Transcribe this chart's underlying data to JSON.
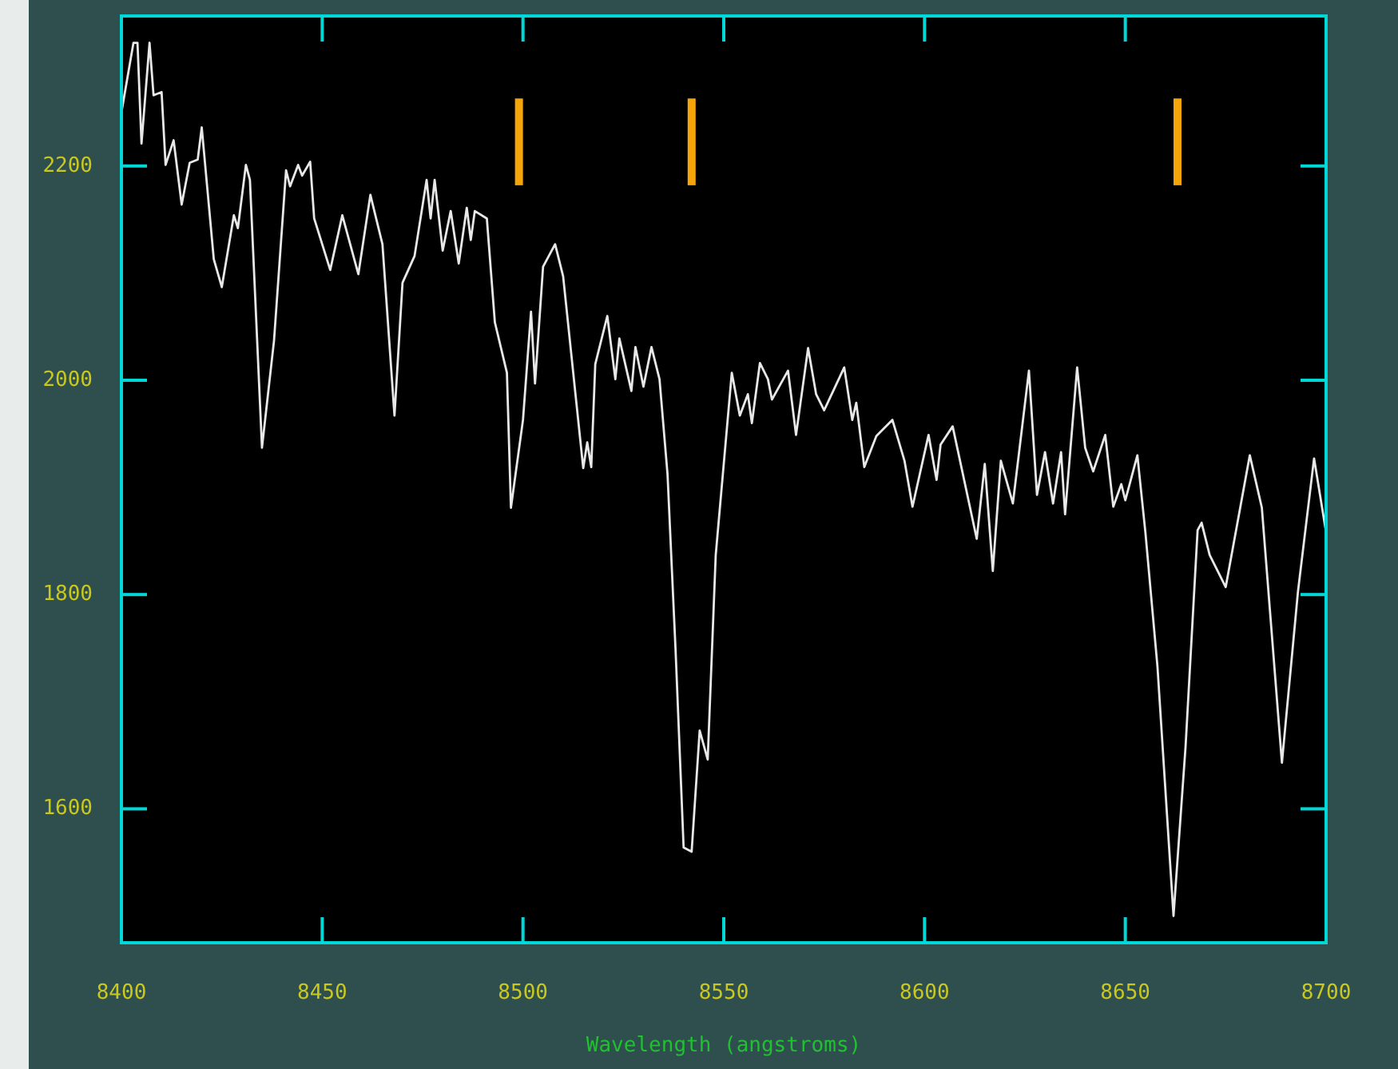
{
  "chart_data": {
    "type": "line",
    "xlabel": "Wavelength (angstroms)",
    "xlim": [
      8400,
      8700
    ],
    "xticks": [
      8400,
      8450,
      8500,
      8550,
      8600,
      8650,
      8700
    ],
    "ylim": [
      1475,
      2340
    ],
    "yticks": [
      1600,
      1800,
      2000,
      2200
    ],
    "grid": false,
    "marker": "none",
    "line_style": "solid",
    "series": [
      {
        "color": "#e8e8e8",
        "x": [
          8400,
          8403,
          8404,
          8405,
          8407,
          8408,
          8410,
          8411,
          8413,
          8415,
          8417,
          8419,
          8420,
          8423,
          8425,
          8428,
          8429,
          8431,
          8432,
          8435,
          8438,
          8441,
          8442,
          8444,
          8445,
          8447,
          8448,
          8452,
          8455,
          8459,
          8462,
          8465,
          8468,
          8470,
          8473,
          8476,
          8477,
          8478,
          8480,
          8482,
          8484,
          8486,
          8487,
          8488,
          8491,
          8493,
          8496,
          8497,
          8500,
          8502,
          8503,
          8505,
          8508,
          8510,
          8515,
          8516,
          8517,
          8518,
          8521,
          8523,
          8524,
          8527,
          8528,
          8530,
          8532,
          8534,
          8536,
          8538,
          8540,
          8542,
          8544,
          8546,
          8548,
          8552,
          8554,
          8556,
          8557,
          8559,
          8561,
          8562,
          8566,
          8568,
          8571,
          8573,
          8575,
          8580,
          8582,
          8583,
          8585,
          8588,
          8592,
          8595,
          8597,
          8601,
          8603,
          8604,
          8607,
          8613,
          8615,
          8617,
          8619,
          8622,
          8626,
          8628,
          8630,
          8632,
          8634,
          8635,
          8638,
          8640,
          8642,
          8645,
          8647,
          8649,
          8650,
          8653,
          8655,
          8658,
          8662,
          8665,
          8668,
          8669,
          8671,
          8675,
          8681,
          8684,
          8689,
          8693,
          8697,
          8700
        ],
        "values": [
          2250,
          2315,
          2315,
          2221,
          2315,
          2266,
          2269,
          2201,
          2224,
          2164,
          2203,
          2206,
          2236,
          2113,
          2087,
          2154,
          2142,
          2201,
          2187,
          1937,
          2037,
          2196,
          2181,
          2201,
          2191,
          2204,
          2151,
          2103,
          2154,
          2099,
          2173,
          2127,
          1967,
          2091,
          2116,
          2187,
          2151,
          2187,
          2121,
          2158,
          2109,
          2161,
          2131,
          2158,
          2151,
          2054,
          2007,
          1881,
          1963,
          2064,
          1997,
          2106,
          2127,
          2097,
          1918,
          1942,
          1919,
          2015,
          2060,
          2001,
          2039,
          1990,
          2031,
          1994,
          2031,
          2001,
          1912,
          1748,
          1564,
          1560,
          1673,
          1646,
          1837,
          2007,
          1967,
          1987,
          1960,
          2016,
          2001,
          1982,
          2009,
          1949,
          2030,
          1987,
          1972,
          2012,
          1963,
          1979,
          1919,
          1948,
          1963,
          1925,
          1882,
          1949,
          1907,
          1940,
          1957,
          1852,
          1922,
          1822,
          1925,
          1885,
          2009,
          1893,
          1933,
          1885,
          1933,
          1875,
          2012,
          1937,
          1915,
          1949,
          1882,
          1903,
          1888,
          1930,
          1858,
          1733,
          1500,
          1658,
          1860,
          1867,
          1837,
          1807,
          1930,
          1881,
          1643,
          1803,
          1927,
          1858
        ]
      },
      {
        "type": "bar",
        "color": "#f5a50a",
        "x": [
          8499,
          8542,
          8663
        ],
        "base": [
          2182,
          2182,
          2182
        ],
        "values": [
          81,
          81,
          81
        ]
      }
    ]
  }
}
